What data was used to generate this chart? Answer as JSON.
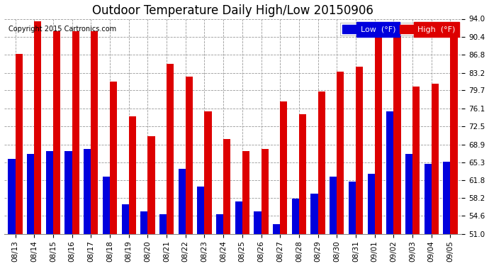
{
  "title": "Outdoor Temperature Daily High/Low 20150906",
  "copyright": "Copyright 2015 Cartronics.com",
  "legend_low": "Low  (°F)",
  "legend_high": "High  (°F)",
  "dates": [
    "08/13",
    "08/14",
    "08/15",
    "08/16",
    "08/17",
    "08/18",
    "08/19",
    "08/20",
    "08/21",
    "08/22",
    "08/23",
    "08/24",
    "08/25",
    "08/26",
    "08/27",
    "08/28",
    "08/29",
    "08/30",
    "08/31",
    "09/01",
    "09/02",
    "09/03",
    "09/04",
    "09/05"
  ],
  "low": [
    66.0,
    67.0,
    67.5,
    67.5,
    68.0,
    62.5,
    57.0,
    55.5,
    55.0,
    64.0,
    60.5,
    55.0,
    57.5,
    55.5,
    53.0,
    58.0,
    59.0,
    62.5,
    61.5,
    63.0,
    75.5,
    67.0,
    65.0,
    65.5
  ],
  "high": [
    87.0,
    93.5,
    91.5,
    91.5,
    91.5,
    81.5,
    74.5,
    70.5,
    85.0,
    82.5,
    75.5,
    70.0,
    67.5,
    68.0,
    77.5,
    75.0,
    79.5,
    83.5,
    84.5,
    91.5,
    91.5,
    80.5,
    81.0,
    90.5
  ],
  "ylim": [
    51.0,
    94.0
  ],
  "ybase": 51.0,
  "yticks": [
    51.0,
    54.6,
    58.2,
    61.8,
    65.3,
    68.9,
    72.5,
    76.1,
    79.7,
    83.2,
    86.8,
    90.4,
    94.0
  ],
  "low_color": "#0000dd",
  "high_color": "#dd0000",
  "bg_color": "#ffffff",
  "grid_color": "#999999",
  "bar_width": 0.38,
  "title_fontsize": 12,
  "tick_fontsize": 7.5,
  "copyright_fontsize": 7.0,
  "legend_low_bg": "#0000dd",
  "legend_high_bg": "#dd0000"
}
